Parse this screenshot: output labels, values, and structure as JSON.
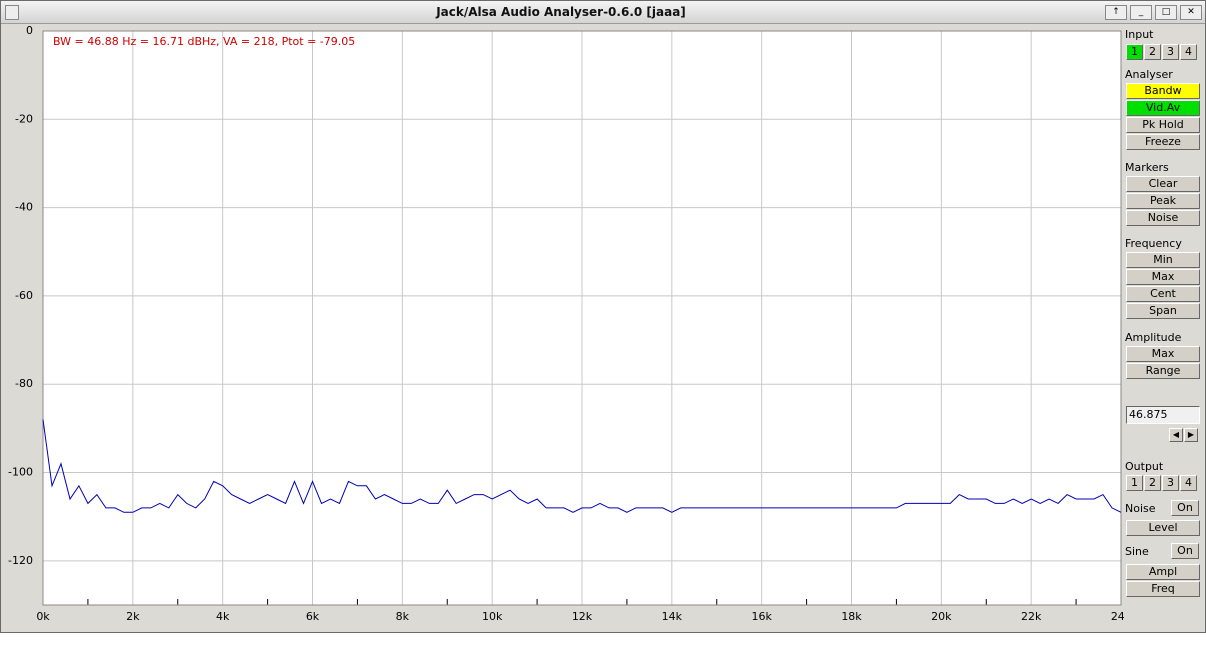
{
  "window": {
    "title": "Jack/Alsa Audio Analyser-0.6.0  [jaaa]"
  },
  "chart_data": {
    "type": "line",
    "annotation": "BW = 46.88 Hz = 16.71 dBHz, VA = 218, Ptot = -79.05",
    "color": "#0000b4",
    "x": [
      0,
      200,
      400,
      600,
      800,
      1000,
      1200,
      1400,
      1600,
      1800,
      2000,
      2200,
      2400,
      2600,
      2800,
      3000,
      3200,
      3400,
      3600,
      3800,
      4000,
      4200,
      4400,
      4600,
      4800,
      5000,
      5200,
      5400,
      5600,
      5800,
      6000,
      6200,
      6400,
      6600,
      6800,
      7000,
      7200,
      7400,
      7600,
      7800,
      8000,
      8200,
      8400,
      8600,
      8800,
      9000,
      9200,
      9400,
      9600,
      9800,
      10000,
      10200,
      10400,
      10600,
      10800,
      11000,
      11200,
      11400,
      11600,
      11800,
      12000,
      12200,
      12400,
      12600,
      12800,
      13000,
      13200,
      13400,
      13600,
      13800,
      14000,
      14200,
      14400,
      14600,
      14800,
      15000,
      15200,
      15400,
      15600,
      15800,
      16000,
      16200,
      16400,
      16600,
      16800,
      17000,
      17200,
      17400,
      17600,
      17800,
      18000,
      18200,
      18400,
      18600,
      18800,
      19000,
      19200,
      19400,
      19600,
      19800,
      20000,
      20200,
      20400,
      20600,
      20800,
      21000,
      21200,
      21400,
      21600,
      21800,
      22000,
      22200,
      22400,
      22600,
      22800,
      23000,
      23200,
      23400,
      23600,
      23800,
      24000
    ],
    "values": [
      -88,
      -103,
      -98,
      -106,
      -103,
      -107,
      -105,
      -108,
      -108,
      -109,
      -109,
      -108,
      -108,
      -107,
      -108,
      -105,
      -107,
      -108,
      -106,
      -102,
      -103,
      -105,
      -106,
      -107,
      -106,
      -105,
      -106,
      -107,
      -102,
      -107,
      -102,
      -107,
      -106,
      -107,
      -102,
      -103,
      -103,
      -106,
      -105,
      -106,
      -107,
      -107,
      -106,
      -107,
      -107,
      -104,
      -107,
      -106,
      -105,
      -105,
      -106,
      -105,
      -104,
      -106,
      -107,
      -106,
      -108,
      -108,
      -108,
      -109,
      -108,
      -108,
      -107,
      -108,
      -108,
      -109,
      -108,
      -108,
      -108,
      -108,
      -109,
      -108,
      -108,
      -108,
      -108,
      -108,
      -108,
      -108,
      -108,
      -108,
      -108,
      -108,
      -108,
      -108,
      -108,
      -108,
      -108,
      -108,
      -108,
      -108,
      -108,
      -108,
      -108,
      -108,
      -108,
      -108,
      -107,
      -107,
      -107,
      -107,
      -107,
      -107,
      -105,
      -106,
      -106,
      -106,
      -107,
      -107,
      -106,
      -107,
      -106,
      -107,
      -106,
      -107,
      -105,
      -106,
      -106,
      -106,
      -105,
      -108,
      -109
    ],
    "xlim": [
      0,
      24000
    ],
    "xticks": [
      {
        "value": 0,
        "label": "0k"
      },
      {
        "value": 2000,
        "label": "2k"
      },
      {
        "value": 4000,
        "label": "4k"
      },
      {
        "value": 6000,
        "label": "6k"
      },
      {
        "value": 8000,
        "label": "8k"
      },
      {
        "value": 10000,
        "label": "10k"
      },
      {
        "value": 12000,
        "label": "12k"
      },
      {
        "value": 14000,
        "label": "14k"
      },
      {
        "value": 16000,
        "label": "16k"
      },
      {
        "value": 18000,
        "label": "18k"
      },
      {
        "value": 20000,
        "label": "20k"
      },
      {
        "value": 22000,
        "label": "22k"
      },
      {
        "value": 24000,
        "label": "24k"
      }
    ],
    "xminorticks": [
      1000,
      3000,
      5000,
      7000,
      9000,
      11000,
      13000,
      15000,
      17000,
      19000,
      21000,
      23000
    ],
    "ylim": [
      -130,
      0
    ],
    "yticks": [
      0,
      -20,
      -40,
      -60,
      -80,
      -100,
      -120
    ],
    "grid": true
  },
  "panel": {
    "input": {
      "label": "Input",
      "buttons": [
        "1",
        "2",
        "3",
        "4"
      ]
    },
    "analyser": {
      "label": "Analyser",
      "buttons": [
        "Bandw",
        "Vid.Av",
        "Pk Hold",
        "Freeze"
      ]
    },
    "markers": {
      "label": "Markers",
      "buttons": [
        "Clear",
        "Peak",
        "Noise"
      ]
    },
    "frequency": {
      "label": "Frequency",
      "buttons": [
        "Min",
        "Max",
        "Cent",
        "Span"
      ]
    },
    "amplitude": {
      "label": "Amplitude",
      "buttons": [
        "Max",
        "Range"
      ]
    },
    "field": "46.875",
    "output": {
      "label": "Output",
      "buttons": [
        "1",
        "2",
        "3",
        "4"
      ]
    },
    "noise": {
      "label": "Noise",
      "toggle": "On",
      "buttons": [
        "Level"
      ]
    },
    "sine": {
      "label": "Sine",
      "toggle": "On",
      "buttons": [
        "Ampl",
        "Freq"
      ]
    }
  }
}
